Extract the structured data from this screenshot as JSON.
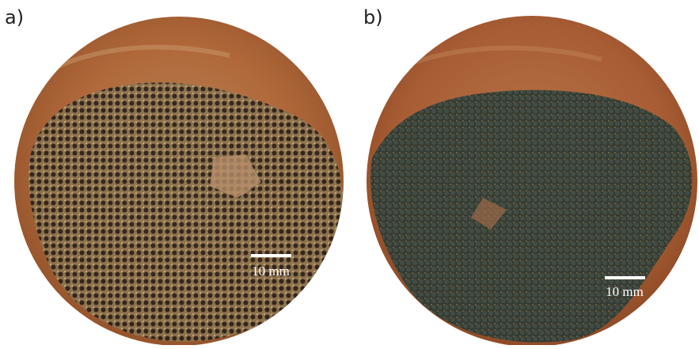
{
  "panels": [
    {
      "label": "a)",
      "scale_bar": "10 mm"
    },
    {
      "label": "b)",
      "scale_bar": "10 mm"
    }
  ]
}
